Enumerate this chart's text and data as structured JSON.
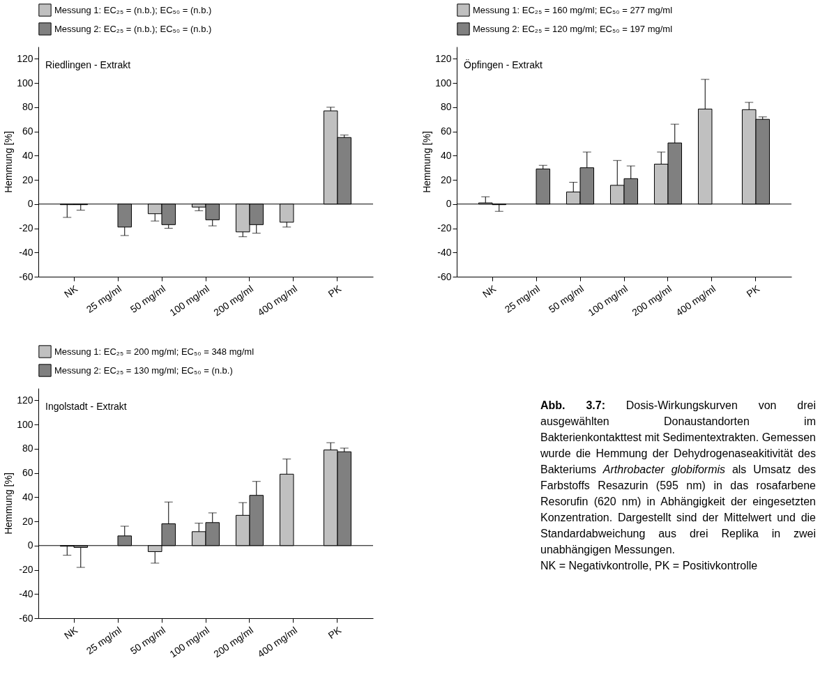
{
  "chart_data": [
    {
      "type": "bar",
      "ylabel": "Hemmung [%]",
      "categories": [
        "NK",
        "25 mg/ml",
        "50 mg/ml",
        "100 mg/ml",
        "200 mg/ml",
        "400 mg/ml",
        "PK"
      ],
      "ylim": [
        -60,
        130
      ],
      "yticks": [
        -60,
        -40,
        -20,
        0,
        20,
        40,
        60,
        80,
        100,
        120
      ],
      "legend": "top",
      "annotations": [
        "Riedlingen - Extrakt"
      ],
      "ref_lines": [
        {
          "axis": "y",
          "value": 0,
          "color": "#000000"
        }
      ],
      "series": [
        {
          "name": "Messung 1: EC₂₅ = (n.b.);  EC₅₀ = (n.b.)",
          "color": "#c0c0c0",
          "values": [
            -0.5,
            null,
            -8,
            -2.5,
            -23,
            -15,
            77
          ],
          "errors": [
            [
              -11,
              -0.5
            ],
            null,
            [
              -14,
              -8
            ],
            [
              -5.5,
              -2.5
            ],
            [
              -27,
              -23
            ],
            [
              -19,
              -15
            ],
            [
              77,
              80
            ]
          ]
        },
        {
          "name": "Messung 2: EC₂₅ = (n.b.);  EC₅₀ = (n.b.)",
          "color": "#808080",
          "values": [
            -0.5,
            -19,
            -17,
            -13,
            -17,
            null,
            55
          ],
          "errors": [
            [
              -5,
              -0.5
            ],
            [
              -26,
              -19
            ],
            [
              -20,
              -17
            ],
            [
              -18,
              -13
            ],
            [
              -24,
              -17
            ],
            null,
            [
              55,
              57
            ]
          ]
        }
      ]
    },
    {
      "type": "bar",
      "ylabel": "Hemmung [%]",
      "categories": [
        "NK",
        "25 mg/ml",
        "50 mg/ml",
        "100 mg/ml",
        "200 mg/ml",
        "400 mg/ml",
        "PK"
      ],
      "ylim": [
        -60,
        130
      ],
      "yticks": [
        -60,
        -40,
        -20,
        0,
        20,
        40,
        60,
        80,
        100,
        120
      ],
      "legend": "top",
      "annotations": [
        "Öpfingen - Extrakt"
      ],
      "ref_lines": [
        {
          "axis": "y",
          "value": 0,
          "color": "#000000"
        }
      ],
      "series": [
        {
          "name": "Messung 1: EC₂₅ = 160 mg/ml; EC₅₀ = 277 mg/ml",
          "color": "#c0c0c0",
          "values": [
            1,
            null,
            10,
            15.5,
            33,
            78.5,
            78
          ],
          "errors": [
            [
              1,
              6
            ],
            null,
            [
              10,
              18
            ],
            [
              15.5,
              36
            ],
            [
              33,
              43
            ],
            [
              78.5,
              103
            ],
            [
              78,
              84
            ]
          ]
        },
        {
          "name": "Messung 2: EC₂₅ = 120 mg/ml; EC₅₀ = 197 mg/ml",
          "color": "#808080",
          "values": [
            -0.5,
            29,
            30,
            21,
            50.5,
            null,
            70
          ],
          "errors": [
            [
              -6,
              -0.5
            ],
            [
              29,
              32
            ],
            [
              30,
              43
            ],
            [
              21,
              31.5
            ],
            [
              50.5,
              66
            ],
            null,
            [
              70,
              72
            ]
          ]
        }
      ]
    },
    {
      "type": "bar",
      "ylabel": "Hemmung [%]",
      "categories": [
        "NK",
        "25 mg/ml",
        "50 mg/ml",
        "100 mg/ml",
        "200 mg/ml",
        "400 mg/ml",
        "PK"
      ],
      "ylim": [
        -60,
        130
      ],
      "yticks": [
        -60,
        -40,
        -20,
        0,
        20,
        40,
        60,
        80,
        100,
        120
      ],
      "legend": "top",
      "annotations": [
        "Ingolstadt - Extrakt"
      ],
      "ref_lines": [
        {
          "axis": "y",
          "value": 0,
          "color": "#000000"
        }
      ],
      "series": [
        {
          "name": "Messung 1: EC₂₅ = 200 mg/ml; EC₅₀ = 348 mg/ml",
          "color": "#c0c0c0",
          "values": [
            -0.5,
            null,
            -5,
            11.5,
            25,
            59,
            79
          ],
          "errors": [
            [
              -8,
              -0.5
            ],
            null,
            [
              -14.5,
              -5
            ],
            [
              11.5,
              18.5
            ],
            [
              25,
              35.5
            ],
            [
              59,
              71.5
            ],
            [
              79,
              85
            ]
          ]
        },
        {
          "name": "Messung 2: EC₂₅ = 130 mg/ml; EC₅₀ = (n.b.)",
          "color": "#808080",
          "values": [
            -1.5,
            8,
            18,
            19,
            41.5,
            null,
            77.5
          ],
          "errors": [
            [
              -18,
              -1.5
            ],
            [
              8,
              16
            ],
            [
              18,
              36
            ],
            [
              19,
              27
            ],
            [
              41.5,
              53
            ],
            null,
            [
              77.5,
              80.5
            ]
          ]
        }
      ]
    },
    {
      "type": "other",
      "annotations": [
        "Abb. 3.7:",
        "Dosis-Wirkungskurven von drei ausgewählten Donaustandorten im Bakterienkontakttest mit Sedimentextrakten. Gemessen wurde die Hemmung der Dehydrogenaseakitivität des Bakteriums",
        "Arthrobacter globiformis",
        "als Umsatz des Farbstoffs Resazurin (595 nm) in das rosafarbene Resorufin (620 nm) in Abhängigkeit der eingesetzten Konzentration. Dargestellt sind der Mittelwert und die Standardabweichung aus drei Replika in zwei unabhängigen Messungen.",
        "NK = Negativkontrolle, PK = Positivkontrolle"
      ]
    }
  ]
}
